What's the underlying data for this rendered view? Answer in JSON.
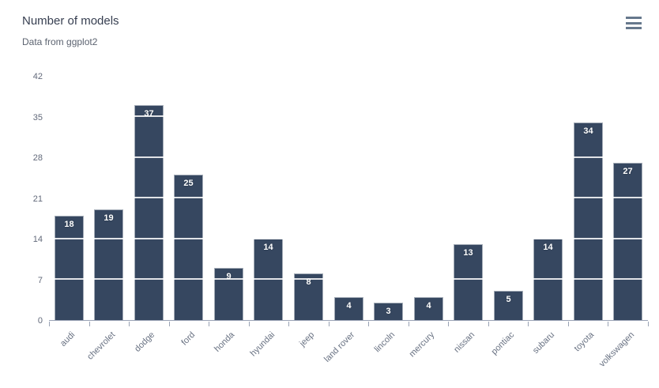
{
  "header": {
    "title": "Number of models",
    "subtitle": "Data from ggplot2"
  },
  "menu": {
    "icon": "hamburger-icon"
  },
  "chart_data": {
    "type": "bar",
    "title": "Number of models",
    "subtitle": "Data from ggplot2",
    "categories": [
      "audi",
      "chevrolet",
      "dodge",
      "ford",
      "honda",
      "hyundai",
      "jeep",
      "land rover",
      "lincoln",
      "mercury",
      "nissan",
      "pontiac",
      "subaru",
      "toyota",
      "volkswagen"
    ],
    "values": [
      18,
      19,
      37,
      25,
      9,
      14,
      8,
      4,
      3,
      4,
      13,
      5,
      14,
      34,
      27
    ],
    "xlabel": "",
    "ylabel": "",
    "ylim": [
      0,
      42
    ],
    "yticks": [
      0,
      7,
      14,
      21,
      28,
      35,
      42
    ],
    "grid": "horizontal gridlines, white, drawn over bars",
    "legend": "none",
    "data_labels": "inside top of each bar, white bold"
  },
  "colors": {
    "bar": "#364760",
    "bar_label": "#ffffff",
    "title": "#373f51",
    "subtitle": "#5c6370",
    "axis_labels": "#687182",
    "axis_line": "#9aa3b5",
    "gridline": "#ffffff",
    "menu_icon": "#66788c",
    "background": "#ffffff"
  }
}
